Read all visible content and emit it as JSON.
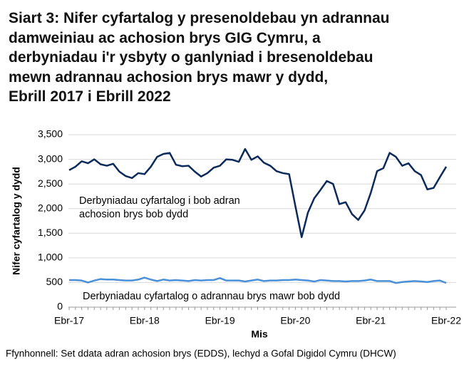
{
  "chart_data": {
    "type": "line",
    "title": [
      "Siart 3: Nifer cyfartalog y presenoldebau yn adrannau",
      "damweiniau ac achosion brys GIG Cymru, a",
      "derbyniadau i'r ysbyty o ganlyniad i bresenoldebau",
      "mewn adrannau achosion brys mawr y dydd,",
      "Ebrill 2017 i Ebrill 2022"
    ],
    "y_label": "Nifer cyfartalog y dydd",
    "x_label": "Mis",
    "source": "Ffynhonnell: Set ddata adran achosion brys (EDDS), lechyd a Gofal Digidol Cymru (DHCW)",
    "categories": [
      "Ebr-17",
      null,
      null,
      null,
      null,
      null,
      null,
      null,
      null,
      null,
      null,
      null,
      "Ebr-18",
      null,
      null,
      null,
      null,
      null,
      null,
      null,
      null,
      null,
      null,
      null,
      "Ebr-19",
      null,
      null,
      null,
      null,
      null,
      null,
      null,
      null,
      null,
      null,
      null,
      "Ebr-20",
      null,
      null,
      null,
      null,
      null,
      null,
      null,
      null,
      null,
      null,
      null,
      "Ebr-21",
      null,
      null,
      null,
      null,
      null,
      null,
      null,
      null,
      null,
      null,
      null,
      "Ebr-22"
    ],
    "series": [
      {
        "name": "Derbyniadau cyfartalog i bob adran achosion brys bob dydd",
        "color": "#0b2a5b",
        "values": [
          2780,
          2850,
          2960,
          2920,
          3000,
          2900,
          2870,
          2910,
          2750,
          2660,
          2620,
          2720,
          2700,
          2850,
          3050,
          3110,
          3130,
          2890,
          2860,
          2870,
          2750,
          2650,
          2720,
          2830,
          2870,
          3000,
          2990,
          2950,
          3210,
          2990,
          3060,
          2930,
          2870,
          2760,
          2720,
          2700,
          2050,
          1420,
          1920,
          2210,
          2380,
          2560,
          2500,
          2090,
          2130,
          1890,
          1770,
          1960,
          2320,
          2760,
          2820,
          3130,
          3050,
          2870,
          2920,
          2760,
          2680,
          2390,
          2420,
          2640,
          2850
        ]
      },
      {
        "name": "Derbyniadau cyfartalog o adrannau brys mawr bob dydd",
        "color": "#4a90d9",
        "values": [
          550,
          550,
          540,
          500,
          540,
          570,
          560,
          560,
          550,
          540,
          540,
          560,
          600,
          560,
          530,
          560,
          540,
          550,
          540,
          530,
          550,
          540,
          550,
          550,
          590,
          540,
          540,
          540,
          520,
          540,
          560,
          530,
          540,
          540,
          550,
          550,
          560,
          550,
          540,
          520,
          550,
          540,
          530,
          530,
          520,
          530,
          530,
          540,
          560,
          530,
          530,
          530,
          490,
          510,
          520,
          530,
          520,
          510,
          530,
          540,
          490
        ]
      }
    ],
    "ylim": [
      0,
      3500
    ],
    "yticks": [
      0,
      500,
      {
        "value": 1000,
        "label": "1,000"
      },
      {
        "value": 1500,
        "label": "1,500"
      },
      {
        "value": 2000,
        "label": "2,000"
      },
      {
        "value": 2500,
        "label": "2,500"
      },
      {
        "value": 3000,
        "label": "3,000"
      },
      {
        "value": 3500,
        "label": "3,500"
      }
    ],
    "grid": true
  }
}
